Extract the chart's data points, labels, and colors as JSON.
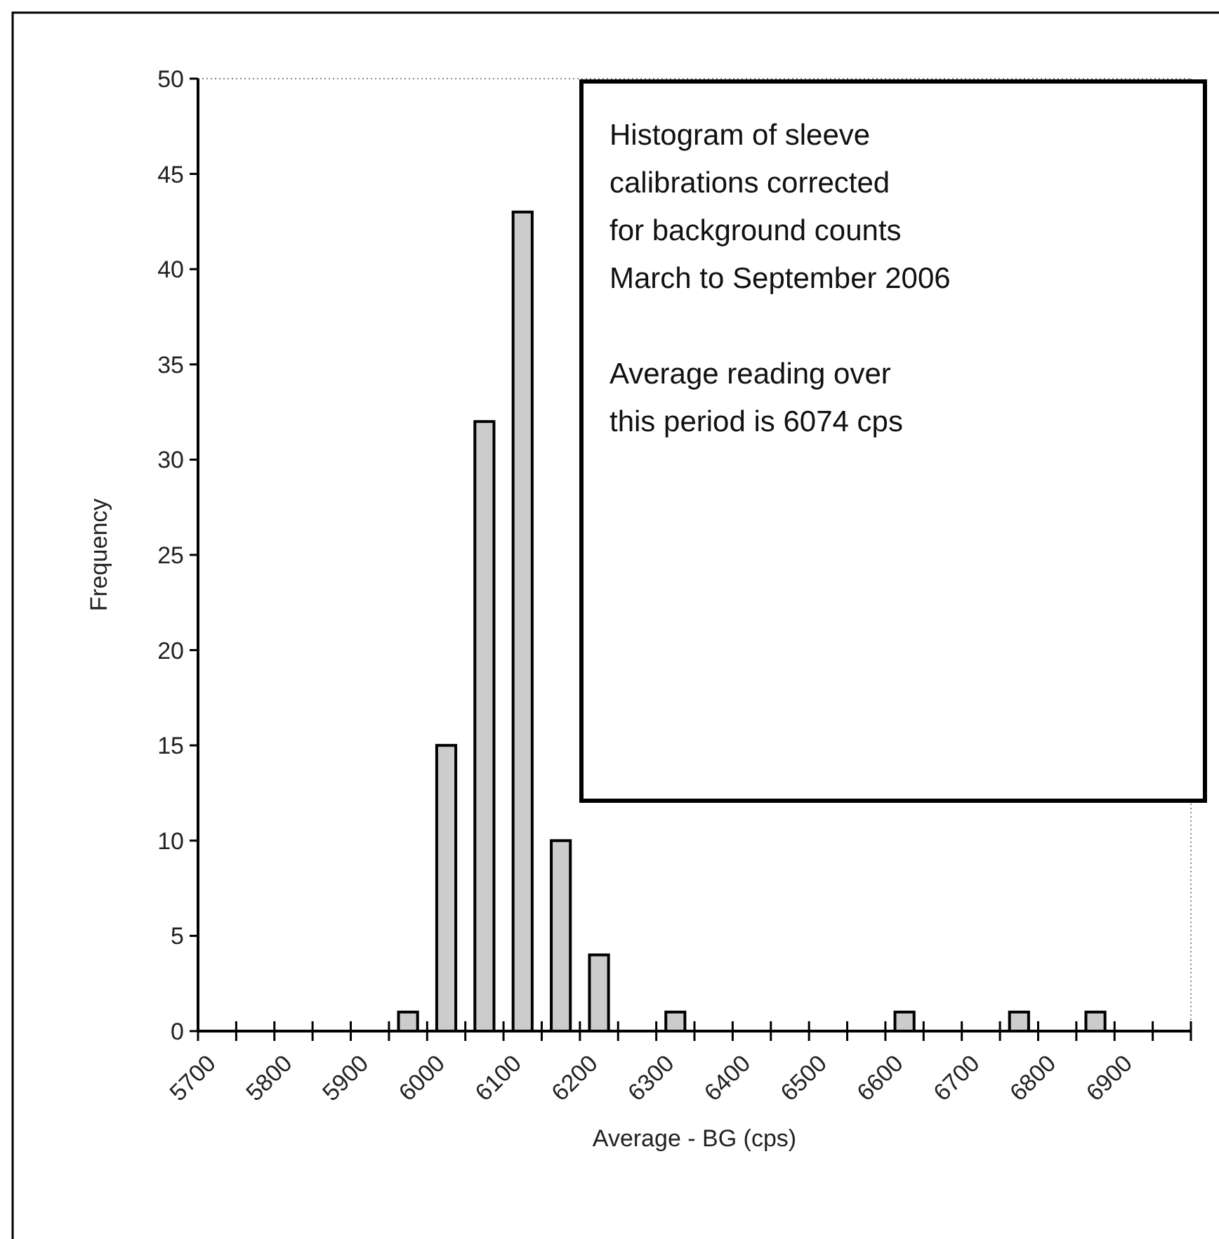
{
  "chart_data": {
    "type": "bar",
    "xlabel": "Average - BG (cps)",
    "ylabel": "Frequency",
    "categories": [
      "5700",
      null,
      "5800",
      null,
      "5900",
      null,
      "6000",
      null,
      "6100",
      null,
      "6200",
      null,
      "6300",
      null,
      "6400",
      null,
      "6500",
      null,
      "6600",
      null,
      "6700",
      null,
      "6800",
      null,
      "6900",
      null
    ],
    "values": [
      0,
      0,
      0,
      0,
      0,
      1,
      15,
      32,
      43,
      10,
      4,
      0,
      1,
      0,
      0,
      0,
      0,
      0,
      1,
      0,
      0,
      1,
      0,
      1,
      0,
      0
    ],
    "color": "#cccccc",
    "ylim": [
      0,
      50
    ],
    "yticks": [
      0,
      5,
      10,
      15,
      20,
      25,
      30,
      35,
      40,
      45,
      50
    ],
    "grid": false,
    "annotations": [
      "Histogram of sleeve calibrations corrected for background counts March to September 2006",
      "Average reading over this period is 6074 cps"
    ]
  }
}
